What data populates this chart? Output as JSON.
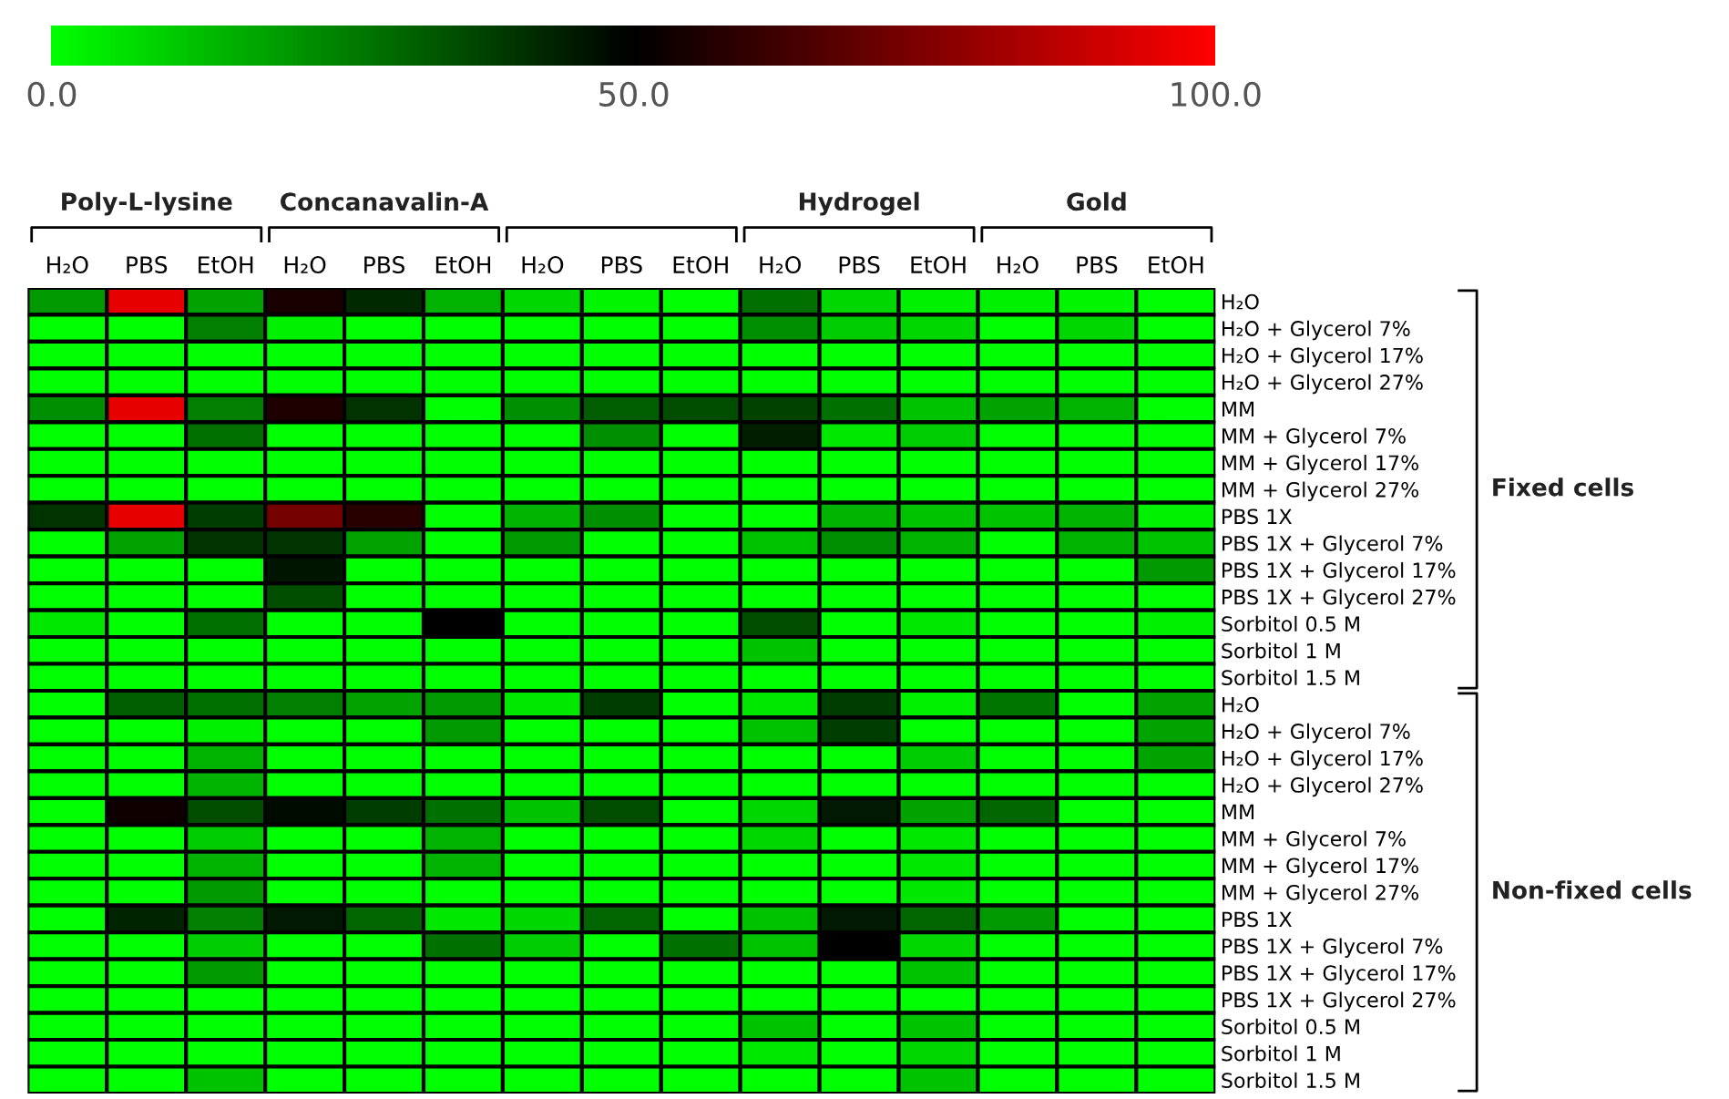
{
  "chart_data": {
    "type": "heatmap",
    "categories": [
      "H₂O",
      "PBS",
      "EtOH",
      "H₂O",
      "PBS",
      "EtOH",
      "H₂O",
      "PBS",
      "EtOH",
      "H₂O",
      "PBS",
      "EtOH",
      "H₂O",
      "PBS",
      "EtOH"
    ],
    "y_categories": [
      "H₂O",
      "H₂O + Glycerol 7%",
      "H₂O + Glycerol 17%",
      "H₂O + Glycerol 27%",
      "MM",
      "MM + Glycerol 7%",
      "MM + Glycerol 17%",
      "MM + Glycerol 27%",
      "PBS 1X",
      "PBS 1X + Glycerol 7%",
      "PBS 1X + Glycerol 17%",
      "PBS 1X + Glycerol 27%",
      "Sorbitol 0.5 M",
      "Sorbitol 1 M",
      "Sorbitol 1.5 M",
      "H₂O",
      "H₂O + Glycerol 7%",
      "H₂O + Glycerol 17%",
      "H₂O + Glycerol 27%",
      "MM",
      "MM + Glycerol 7%",
      "MM + Glycerol 17%",
      "MM + Glycerol 27%",
      "PBS 1X",
      "PBS 1X + Glycerol 7%",
      "PBS 1X + Glycerol 17%",
      "PBS 1X + Glycerol 27%",
      "Sorbitol 0.5 M",
      "Sorbitol 1 M",
      "Sorbitol 1.5 M"
    ],
    "cells": [
      [
        20,
        95,
        18,
        55,
        42,
        15,
        8,
        2,
        0,
        28,
        8,
        3,
        3,
        2,
        0
      ],
      [
        0,
        0,
        25,
        3,
        0,
        0,
        0,
        0,
        0,
        22,
        10,
        8,
        0,
        8,
        0
      ],
      [
        0,
        0,
        0,
        0,
        0,
        0,
        0,
        0,
        0,
        0,
        0,
        0,
        0,
        0,
        0
      ],
      [
        0,
        0,
        0,
        0,
        0,
        0,
        0,
        0,
        0,
        0,
        0,
        0,
        0,
        0,
        0
      ],
      [
        22,
        95,
        25,
        56,
        40,
        0,
        22,
        32,
        35,
        37,
        28,
        12,
        18,
        15,
        0
      ],
      [
        0,
        0,
        28,
        0,
        0,
        0,
        0,
        22,
        0,
        44,
        5,
        10,
        0,
        0,
        0
      ],
      [
        0,
        0,
        0,
        0,
        0,
        0,
        0,
        0,
        0,
        0,
        0,
        0,
        0,
        0,
        0
      ],
      [
        0,
        0,
        0,
        0,
        0,
        0,
        0,
        0,
        0,
        0,
        0,
        0,
        0,
        0,
        0
      ],
      [
        40,
        95,
        38,
        73,
        58,
        0,
        15,
        22,
        0,
        0,
        15,
        12,
        12,
        15,
        3
      ],
      [
        0,
        18,
        40,
        40,
        18,
        0,
        20,
        0,
        0,
        12,
        22,
        15,
        0,
        15,
        12
      ],
      [
        0,
        0,
        0,
        46,
        0,
        0,
        0,
        0,
        0,
        0,
        0,
        0,
        0,
        0,
        20
      ],
      [
        0,
        0,
        0,
        35,
        0,
        0,
        0,
        0,
        0,
        0,
        0,
        0,
        0,
        0,
        0
      ],
      [
        5,
        0,
        28,
        0,
        0,
        50,
        0,
        0,
        0,
        35,
        0,
        5,
        0,
        0,
        3
      ],
      [
        0,
        0,
        0,
        0,
        0,
        0,
        0,
        0,
        0,
        12,
        0,
        0,
        0,
        0,
        0
      ],
      [
        0,
        0,
        0,
        0,
        0,
        0,
        0,
        0,
        0,
        0,
        0,
        0,
        0,
        0,
        0
      ],
      [
        0,
        32,
        28,
        25,
        18,
        20,
        5,
        38,
        0,
        5,
        38,
        3,
        27,
        0,
        18
      ],
      [
        0,
        0,
        3,
        0,
        0,
        20,
        0,
        0,
        0,
        12,
        38,
        0,
        0,
        0,
        18
      ],
      [
        0,
        0,
        15,
        0,
        0,
        0,
        0,
        0,
        0,
        0,
        0,
        10,
        0,
        0,
        18
      ],
      [
        0,
        0,
        15,
        0,
        0,
        0,
        0,
        0,
        0,
        0,
        0,
        0,
        0,
        0,
        0
      ],
      [
        0,
        53,
        35,
        48,
        38,
        28,
        12,
        35,
        0,
        8,
        45,
        18,
        30,
        0,
        0
      ],
      [
        0,
        0,
        10,
        0,
        0,
        15,
        0,
        0,
        0,
        8,
        0,
        5,
        0,
        0,
        0
      ],
      [
        0,
        0,
        15,
        0,
        0,
        15,
        0,
        0,
        0,
        0,
        0,
        5,
        0,
        0,
        0
      ],
      [
        0,
        0,
        20,
        0,
        0,
        0,
        0,
        0,
        0,
        0,
        0,
        5,
        0,
        0,
        0
      ],
      [
        0,
        43,
        25,
        45,
        30,
        5,
        8,
        30,
        0,
        12,
        45,
        30,
        20,
        0,
        0
      ],
      [
        0,
        0,
        10,
        0,
        0,
        28,
        10,
        0,
        28,
        12,
        50,
        8,
        0,
        0,
        0
      ],
      [
        0,
        0,
        20,
        0,
        0,
        0,
        0,
        0,
        0,
        0,
        0,
        12,
        0,
        0,
        0
      ],
      [
        0,
        0,
        0,
        0,
        0,
        0,
        0,
        0,
        0,
        0,
        0,
        0,
        0,
        0,
        0
      ],
      [
        0,
        0,
        0,
        0,
        0,
        0,
        0,
        0,
        0,
        12,
        0,
        12,
        0,
        0,
        0
      ],
      [
        0,
        0,
        0,
        0,
        0,
        0,
        0,
        0,
        0,
        5,
        0,
        8,
        0,
        0,
        0
      ],
      [
        0,
        0,
        12,
        0,
        0,
        0,
        0,
        0,
        0,
        0,
        0,
        12,
        0,
        0,
        0
      ]
    ],
    "clim": [
      0,
      100
    ],
    "cticks": [
      {
        "value": 0,
        "label": "0.0"
      },
      {
        "value": 50,
        "label": "50.0"
      },
      {
        "value": 100,
        "label": "100.0"
      }
    ],
    "annotations": [
      "Poly-L-lysine",
      "Concanavalin-A",
      "Hydrogel",
      "Gold",
      "Fixed cells",
      "Non-fixed cells"
    ]
  }
}
